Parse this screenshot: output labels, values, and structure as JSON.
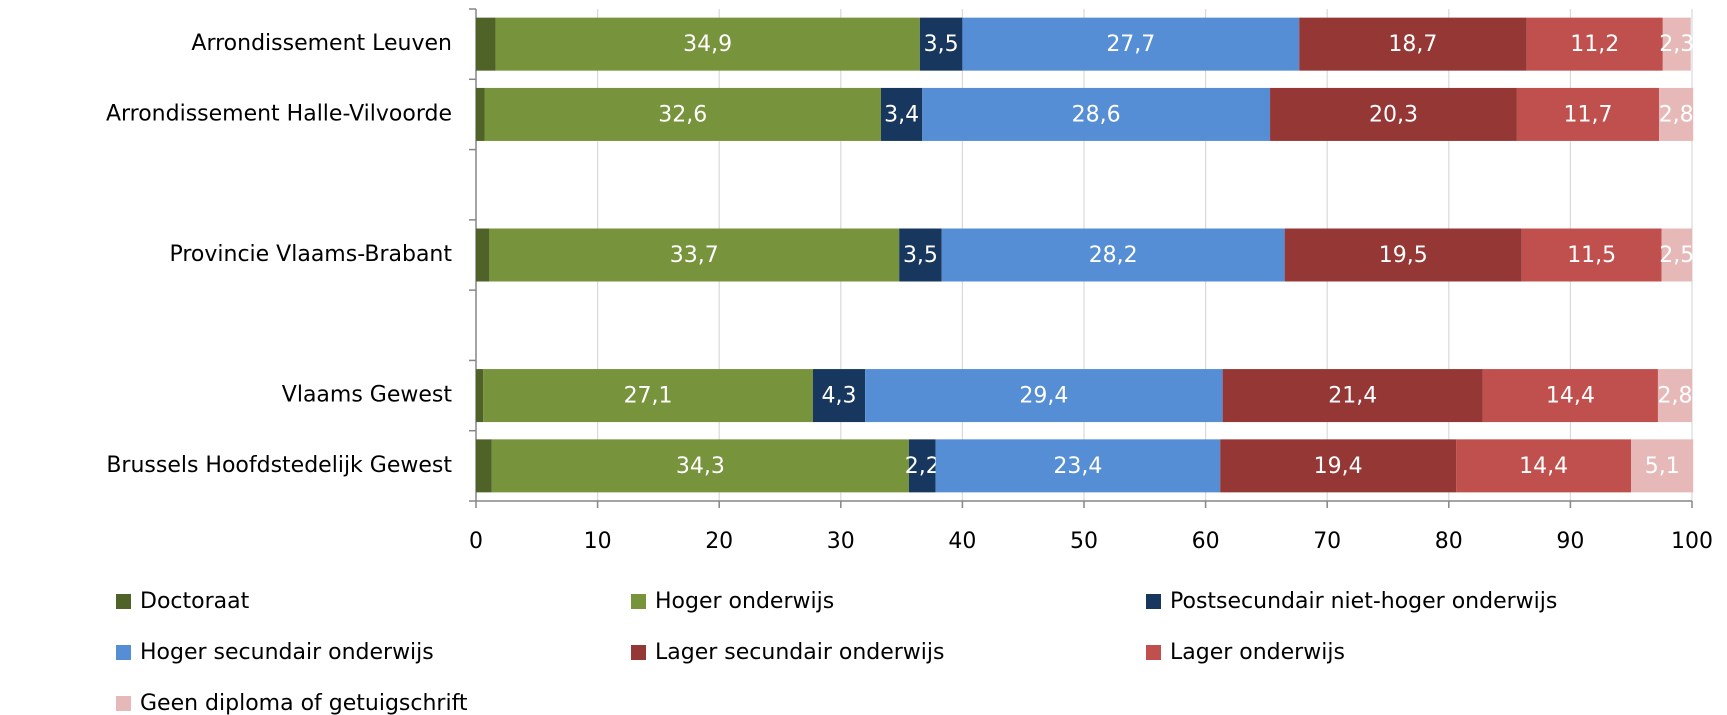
{
  "chart_data": {
    "type": "stacked-barh",
    "categories": [
      "Arrondissement Leuven",
      "Arrondissement Halle-Vilvoorde",
      null,
      "Provincie Vlaams-Brabant",
      null,
      "Vlaams Gewest",
      "Brussels Hoofdstedelijk Gewest"
    ],
    "series": [
      {
        "name": "Doctoraat",
        "color": "#4f6228",
        "values": [
          1.6,
          0.7,
          null,
          1.1,
          null,
          0.6,
          1.3
        ],
        "value_labels": [
          "1,6",
          "0,7",
          null,
          "1,1",
          null,
          "0,6",
          "1,3"
        ]
      },
      {
        "name": "Hoger onderwijs",
        "color": "#77933c",
        "values": [
          34.9,
          32.6,
          null,
          33.7,
          null,
          27.1,
          34.3
        ],
        "value_labels": [
          "34,9",
          "32,6",
          null,
          "33,7",
          null,
          "27,1",
          "34,3"
        ]
      },
      {
        "name": "Postsecundair niet-hoger onderwijs",
        "color": "#17375e",
        "values": [
          3.5,
          3.4,
          null,
          3.5,
          null,
          4.3,
          2.2
        ],
        "value_labels": [
          "3,5",
          "3,4",
          null,
          "3,5",
          null,
          "4,3",
          "2,2"
        ]
      },
      {
        "name": "Hoger secundair onderwijs",
        "color": "#558ed5",
        "values": [
          27.7,
          28.6,
          null,
          28.2,
          null,
          29.4,
          23.4
        ],
        "value_labels": [
          "27,7",
          "28,6",
          null,
          "28,2",
          null,
          "29,4",
          "23,4"
        ]
      },
      {
        "name": "Lager secundair onderwijs",
        "color": "#953735",
        "values": [
          18.7,
          20.3,
          null,
          19.5,
          null,
          21.4,
          19.4
        ],
        "value_labels": [
          "18,7",
          "20,3",
          null,
          "19,5",
          null,
          "21,4",
          "19,4"
        ]
      },
      {
        "name": "Lager onderwijs",
        "color": "#c0504d",
        "values": [
          11.2,
          11.7,
          null,
          11.5,
          null,
          14.4,
          14.4
        ],
        "value_labels": [
          "11,2",
          "11,7",
          null,
          "11,5",
          null,
          "14,4",
          "14,4"
        ]
      },
      {
        "name": "Geen diploma of getuigschrift",
        "color": "#e6b9b8",
        "values": [
          2.3,
          2.8,
          null,
          2.5,
          null,
          2.8,
          5.1
        ],
        "value_labels": [
          "2,3",
          "2,8",
          null,
          "2,5",
          null,
          "2,8",
          "5,1"
        ]
      }
    ],
    "xlim": [
      0,
      100
    ],
    "xticks": [
      0,
      10,
      20,
      30,
      40,
      50,
      60,
      70,
      80,
      90,
      100
    ],
    "grid": true,
    "legend": "bottom"
  }
}
